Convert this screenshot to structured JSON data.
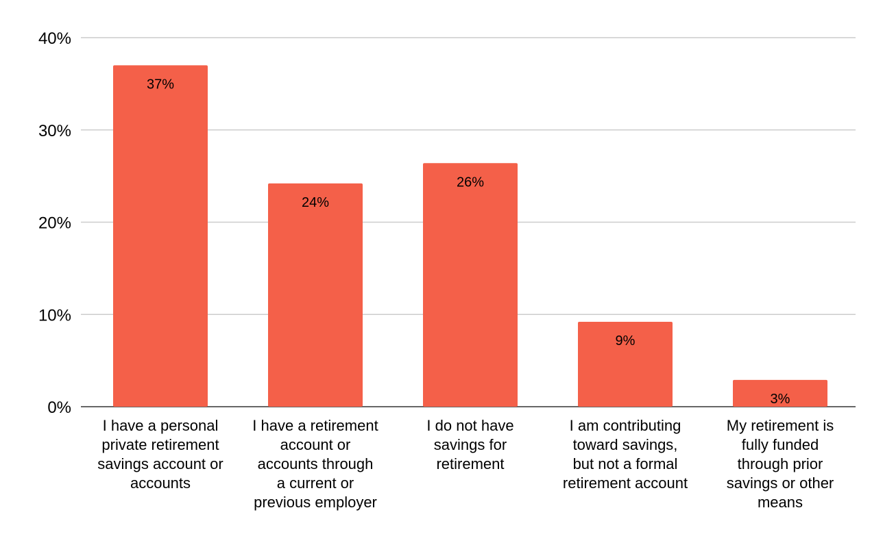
{
  "chart_data": {
    "type": "bar",
    "title": "",
    "xlabel": "",
    "ylabel": "",
    "ylim": [
      0,
      40
    ],
    "yticks": [
      0,
      10,
      20,
      30,
      40
    ],
    "ytick_suffix": "%",
    "grid": true,
    "legend": "none",
    "bar_color": "#f46049",
    "categories": [
      [
        "I have a personal",
        "private retirement",
        "savings account or",
        "accounts"
      ],
      [
        "I have a retirement",
        "account or",
        "accounts through",
        "a current or",
        "previous employer"
      ],
      [
        "I do not have",
        "savings for",
        "retirement"
      ],
      [
        "I am contributing",
        "toward savings,",
        "but not a formal",
        "retirement account"
      ],
      [
        "My retirement is",
        "fully funded",
        "through prior",
        "savings or other",
        "means"
      ]
    ],
    "values": [
      37,
      24.2,
      26.4,
      9.2,
      2.9
    ],
    "data_labels": [
      "37%",
      "24%",
      "26%",
      "9%",
      "3%"
    ]
  }
}
